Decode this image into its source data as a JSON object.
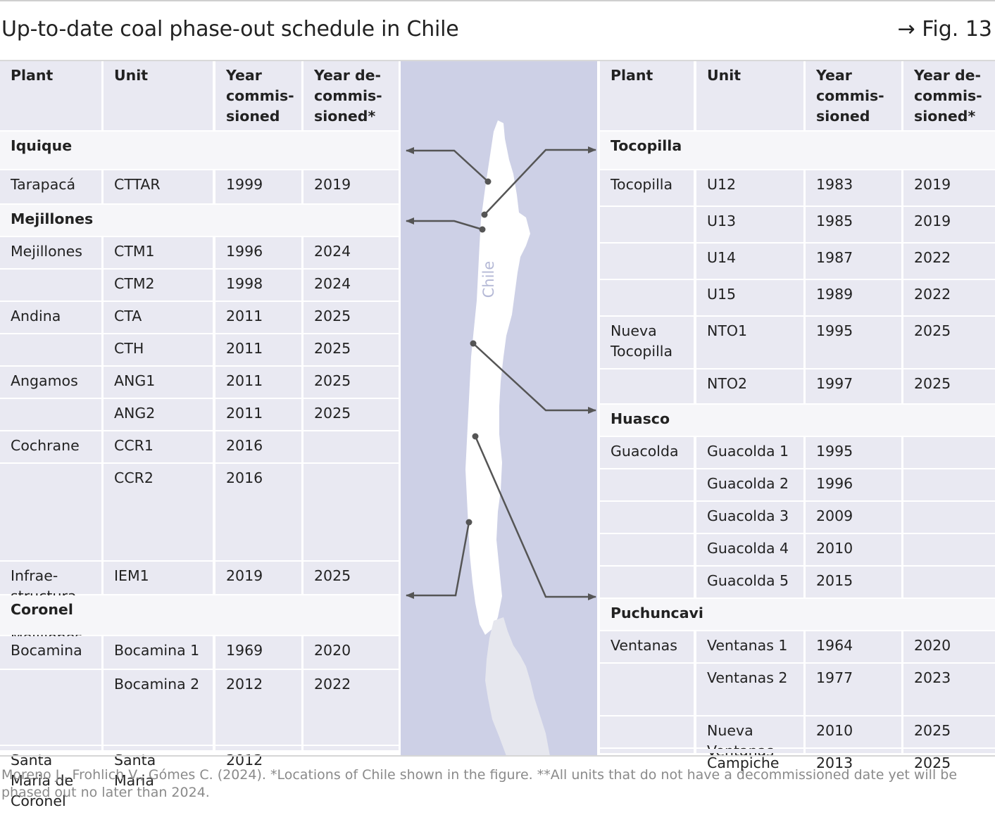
{
  "title": "Up-to-date coal phase-out schedule in Chile",
  "fig_ref": "→ Fig. 13",
  "headers": {
    "plant": "Plant",
    "unit": "Unit",
    "year_comm": [
      "Year",
      "commis-",
      "sioned"
    ],
    "year_decomm": [
      "Year de-",
      "commis-",
      "sioned*"
    ]
  },
  "map_label": "Chile",
  "left_table": [
    {
      "group": "Iquique"
    },
    {
      "plant": "Tarapacá",
      "unit": "CTTAR",
      "commissioned": "1999",
      "decommissioned": "2019"
    },
    {
      "group": "Mejillones"
    },
    {
      "plant": "Mejillones",
      "unit": "CTM1",
      "commissioned": "1996",
      "decommissioned": "2024"
    },
    {
      "plant": "",
      "unit": "CTM2",
      "commissioned": "1998",
      "decommissioned": "2024"
    },
    {
      "plant": "Andina",
      "unit": "CTA",
      "commissioned": "2011",
      "decommissioned": "2025"
    },
    {
      "plant": "",
      "unit": "CTH",
      "commissioned": "2011",
      "decommissioned": "2025"
    },
    {
      "plant": "Angamos",
      "unit": "ANG1",
      "commissioned": "2011",
      "decommissioned": "2025"
    },
    {
      "plant": "",
      "unit": "ANG2",
      "commissioned": "2011",
      "decommissioned": "2025"
    },
    {
      "plant": "Cochrane",
      "unit": "CCR1",
      "commissioned": "2016",
      "decommissioned": ""
    },
    {
      "plant": "",
      "unit": "CCR2",
      "commissioned": "2016",
      "decommissioned": ""
    },
    {
      "plant": "Infrae-\nstructura\nEnergética\nMejillones",
      "unit": "IEM1",
      "commissioned": "2019",
      "decommissioned": "2025"
    },
    {
      "group": "Coronel"
    },
    {
      "plant": "Bocamina",
      "unit": "Bocamina 1",
      "commissioned": "1969",
      "decommissioned": "2020"
    },
    {
      "plant": "",
      "unit": "Bocamina 2",
      "commissioned": "2012",
      "decommissioned": "2022"
    },
    {
      "plant": "Santa\nMaria de\nCoronel",
      "unit": "Santa\nMaria",
      "commissioned": "2012",
      "decommissioned": ""
    }
  ],
  "right_table": [
    {
      "group": "Tocopilla"
    },
    {
      "plant": "Tocopilla",
      "unit": "U12",
      "commissioned": "1983",
      "decommissioned": "2019"
    },
    {
      "plant": "",
      "unit": "U13",
      "commissioned": "1985",
      "decommissioned": "2019"
    },
    {
      "plant": "",
      "unit": "U14",
      "commissioned": "1987",
      "decommissioned": "2022"
    },
    {
      "plant": "",
      "unit": "U15",
      "commissioned": "1989",
      "decommissioned": "2022"
    },
    {
      "plant": "Nueva\nTocopilla",
      "unit": "NTO1",
      "commissioned": "1995",
      "decommissioned": "2025"
    },
    {
      "plant": "",
      "unit": "NTO2",
      "commissioned": "1997",
      "decommissioned": "2025"
    },
    {
      "group": "Huasco"
    },
    {
      "plant": "Guacolda",
      "unit": "Guacolda 1",
      "commissioned": "1995",
      "decommissioned": ""
    },
    {
      "plant": "",
      "unit": "Guacolda 2",
      "commissioned": "1996",
      "decommissioned": ""
    },
    {
      "plant": "",
      "unit": "Guacolda 3",
      "commissioned": "2009",
      "decommissioned": ""
    },
    {
      "plant": "",
      "unit": "Guacolda 4",
      "commissioned": "2010",
      "decommissioned": ""
    },
    {
      "plant": "",
      "unit": "Guacolda 5",
      "commissioned": "2015",
      "decommissioned": ""
    },
    {
      "group": "Puchuncavi"
    },
    {
      "plant": "Ventanas",
      "unit": "Ventanas 1",
      "commissioned": "1964",
      "decommissioned": "2020"
    },
    {
      "plant": "",
      "unit": "Ventanas 2",
      "commissioned": "1977",
      "decommissioned": "2023"
    },
    {
      "plant": "",
      "unit": "Nueva\nVentanas",
      "commissioned": "2010",
      "decommissioned": "2025"
    },
    {
      "plant": "",
      "unit": "Campiche",
      "commissioned": "2013",
      "decommissioned": "2025"
    }
  ],
  "source": "Moreno J., Frohlich V., Gómes C. (2024). *Locations of Chile shown in the figure. **All units that do not have a decommissioned date yet will be phased out no later than 2024.",
  "colors": {
    "map_bg": "#cdd0e6",
    "cell_bg": "#e9e9f2",
    "group_bg": "#f6f6f9",
    "arrow": "#555555"
  }
}
